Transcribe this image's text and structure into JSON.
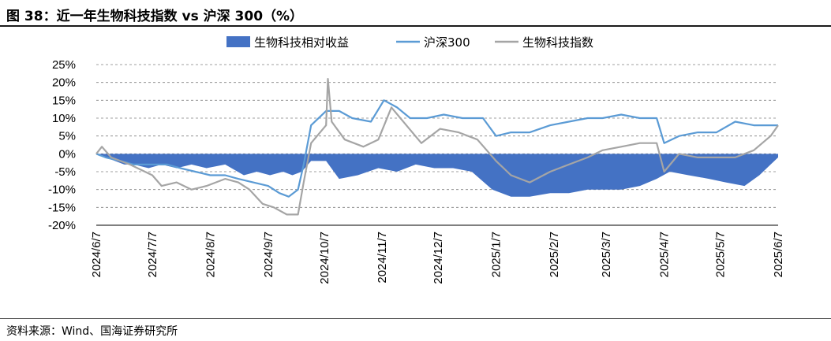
{
  "title": "图 38：近一年生物科技指数 vs 沪深 300（%）",
  "source": "资料来源：Wind、国海证券研究所",
  "colors": {
    "area": "#4472c4",
    "hs300": "#5b9bd5",
    "bio": "#a5a5a5",
    "grid": "#808080"
  },
  "chart_data": {
    "type": "line",
    "ylim": [
      -20,
      25
    ],
    "yticks": [
      "25%",
      "20%",
      "15%",
      "10%",
      "5%",
      "0%",
      "-5%",
      "-10%",
      "-15%",
      "-20%"
    ],
    "yticks_values": [
      25,
      20,
      15,
      10,
      5,
      0,
      -5,
      -10,
      -15,
      -20
    ],
    "x_ticks": [
      "2024/6/7",
      "2024/7/7",
      "2024/8/7",
      "2024/9/7",
      "2024/10/7",
      "2024/11/7",
      "2024/12/7",
      "2025/1/7",
      "2025/2/7",
      "2025/3/7",
      "2025/4/7",
      "2025/5/7",
      "2025/6/7"
    ],
    "grid": "horizontal-dashed",
    "legend_position": "top",
    "legend": [
      "生物科技相对收益",
      "沪深300",
      "生物科技指数"
    ],
    "series": [
      {
        "name": "生物科技相对收益",
        "style": "area",
        "points": [
          [
            "2024/6/7",
            0
          ],
          [
            "2024/6/12",
            -1
          ],
          [
            "2024/6/17",
            -2
          ],
          [
            "2024/6/22",
            -3
          ],
          [
            "2024/6/27",
            -3
          ],
          [
            "2024/7/5",
            -4
          ],
          [
            "2024/7/12",
            -3
          ],
          [
            "2024/7/20",
            -4
          ],
          [
            "2024/7/28",
            -3
          ],
          [
            "2024/8/5",
            -4
          ],
          [
            "2024/8/15",
            -3
          ],
          [
            "2024/8/25",
            -6
          ],
          [
            "2024/9/1",
            -5
          ],
          [
            "2024/9/8",
            -6
          ],
          [
            "2024/9/15",
            -5
          ],
          [
            "2024/9/20",
            -6
          ],
          [
            "2024/9/25",
            -5
          ],
          [
            "2024/9/30",
            -2
          ],
          [
            "2024/10/8",
            -2
          ],
          [
            "2024/10/15",
            -7
          ],
          [
            "2024/10/25",
            -6
          ],
          [
            "2024/11/5",
            -4
          ],
          [
            "2024/11/15",
            -5
          ],
          [
            "2024/11/25",
            -3
          ],
          [
            "2024/12/5",
            -4
          ],
          [
            "2024/12/15",
            -4
          ],
          [
            "2024/12/25",
            -5
          ],
          [
            "2025/1/5",
            -10
          ],
          [
            "2025/1/15",
            -12
          ],
          [
            "2025/1/25",
            -12
          ],
          [
            "2025/2/5",
            -11
          ],
          [
            "2025/2/15",
            -11
          ],
          [
            "2025/2/25",
            -10
          ],
          [
            "2025/3/5",
            -10
          ],
          [
            "2025/3/15",
            -10
          ],
          [
            "2025/3/25",
            -9
          ],
          [
            "2025/4/3",
            -7
          ],
          [
            "2025/4/10",
            -5
          ],
          [
            "2025/4/20",
            -6
          ],
          [
            "2025/5/1",
            -7
          ],
          [
            "2025/5/10",
            -8
          ],
          [
            "2025/5/20",
            -9
          ],
          [
            "2025/5/28",
            -6
          ],
          [
            "2025/6/3",
            -3
          ],
          [
            "2025/6/7",
            -1
          ]
        ]
      },
      {
        "name": "沪深300",
        "style": "line",
        "points": [
          [
            "2024/6/7",
            0
          ],
          [
            "2024/6/12",
            -1
          ],
          [
            "2024/6/20",
            -2
          ],
          [
            "2024/6/27",
            -3
          ],
          [
            "2024/7/7",
            -3
          ],
          [
            "2024/7/15",
            -3
          ],
          [
            "2024/7/22",
            -4
          ],
          [
            "2024/7/30",
            -5
          ],
          [
            "2024/8/7",
            -6
          ],
          [
            "2024/8/15",
            -6
          ],
          [
            "2024/8/22",
            -7
          ],
          [
            "2024/8/30",
            -8
          ],
          [
            "2024/9/7",
            -9
          ],
          [
            "2024/9/13",
            -11
          ],
          [
            "2024/9/18",
            -12
          ],
          [
            "2024/9/23",
            -10
          ],
          [
            "2024/9/26",
            -3
          ],
          [
            "2024/9/30",
            8
          ],
          [
            "2024/10/8",
            12
          ],
          [
            "2024/10/15",
            12
          ],
          [
            "2024/10/22",
            10
          ],
          [
            "2024/11/1",
            9
          ],
          [
            "2024/11/8",
            15
          ],
          [
            "2024/11/15",
            13
          ],
          [
            "2024/11/22",
            10
          ],
          [
            "2024/12/1",
            10
          ],
          [
            "2024/12/10",
            11
          ],
          [
            "2024/12/20",
            10
          ],
          [
            "2024/12/31",
            10
          ],
          [
            "2025/1/7",
            5
          ],
          [
            "2025/1/15",
            6
          ],
          [
            "2025/1/25",
            6
          ],
          [
            "2025/2/5",
            8
          ],
          [
            "2025/2/15",
            9
          ],
          [
            "2025/2/25",
            10
          ],
          [
            "2025/3/5",
            10
          ],
          [
            "2025/3/15",
            11
          ],
          [
            "2025/3/25",
            10
          ],
          [
            "2025/4/3",
            10
          ],
          [
            "2025/4/7",
            3
          ],
          [
            "2025/4/15",
            5
          ],
          [
            "2025/4/25",
            6
          ],
          [
            "2025/5/5",
            6
          ],
          [
            "2025/5/15",
            9
          ],
          [
            "2025/5/25",
            8
          ],
          [
            "2025/6/7",
            8
          ]
        ]
      },
      {
        "name": "生物科技指数",
        "style": "line",
        "points": [
          [
            "2024/6/7",
            0
          ],
          [
            "2024/6/10",
            2
          ],
          [
            "2024/6/15",
            -1
          ],
          [
            "2024/6/25",
            -3
          ],
          [
            "2024/7/7",
            -6
          ],
          [
            "2024/7/12",
            -9
          ],
          [
            "2024/7/20",
            -8
          ],
          [
            "2024/7/28",
            -10
          ],
          [
            "2024/8/5",
            -9
          ],
          [
            "2024/8/15",
            -7
          ],
          [
            "2024/8/22",
            -8
          ],
          [
            "2024/8/28",
            -10
          ],
          [
            "2024/9/4",
            -14
          ],
          [
            "2024/9/10",
            -15
          ],
          [
            "2024/9/17",
            -17
          ],
          [
            "2024/9/23",
            -17
          ],
          [
            "2024/9/26",
            -8
          ],
          [
            "2024/9/30",
            3
          ],
          [
            "2024/10/8",
            8
          ],
          [
            "2024/10/9",
            21
          ],
          [
            "2024/10/11",
            9
          ],
          [
            "2024/10/18",
            4
          ],
          [
            "2024/10/28",
            2
          ],
          [
            "2024/11/5",
            4
          ],
          [
            "2024/11/12",
            13
          ],
          [
            "2024/11/20",
            8
          ],
          [
            "2024/11/28",
            3
          ],
          [
            "2024/12/8",
            7
          ],
          [
            "2024/12/18",
            6
          ],
          [
            "2024/12/28",
            4
          ],
          [
            "2025/1/7",
            -2
          ],
          [
            "2025/1/15",
            -6
          ],
          [
            "2025/1/25",
            -8
          ],
          [
            "2025/2/5",
            -5
          ],
          [
            "2025/2/15",
            -3
          ],
          [
            "2025/2/25",
            -1
          ],
          [
            "2025/3/5",
            1
          ],
          [
            "2025/3/15",
            2
          ],
          [
            "2025/3/25",
            3
          ],
          [
            "2025/4/3",
            3
          ],
          [
            "2025/4/7",
            -5
          ],
          [
            "2025/4/15",
            0
          ],
          [
            "2025/4/25",
            -1
          ],
          [
            "2025/5/5",
            -1
          ],
          [
            "2025/5/15",
            -1
          ],
          [
            "2025/5/25",
            1
          ],
          [
            "2025/6/3",
            5
          ],
          [
            "2025/6/7",
            8
          ]
        ]
      }
    ]
  }
}
